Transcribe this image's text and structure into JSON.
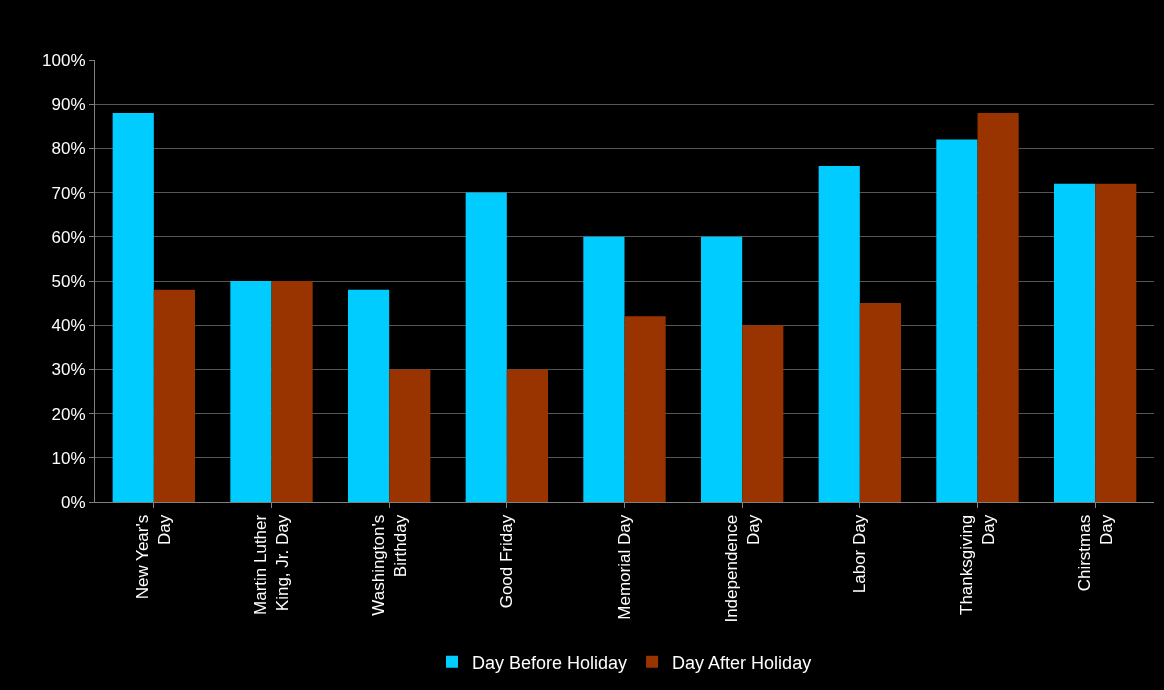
{
  "chart_data": {
    "type": "bar",
    "categories": [
      "New Year's\nDay",
      "Martin Luther\nKing, Jr. Day",
      "Washington's\nBirthday",
      "Good Friday",
      "Memorial Day",
      "Independence\nDay",
      "Labor Day",
      "Thanksgiving\nDay",
      "Chirstmas\nDay"
    ],
    "series": [
      {
        "name": "Day Before Holiday",
        "color": "#00ccff",
        "values": [
          88,
          50,
          48,
          70,
          60,
          60,
          76,
          82,
          72
        ]
      },
      {
        "name": "Day After Holiday",
        "color": "#993300",
        "values": [
          48,
          50,
          30,
          30,
          42,
          40,
          45,
          88,
          72
        ]
      }
    ],
    "ylim": [
      0,
      100
    ],
    "yticks": [
      {
        "value": 0,
        "label": "0%"
      },
      {
        "value": 10,
        "label": "10%"
      },
      {
        "value": 20,
        "label": "20%"
      },
      {
        "value": 30,
        "label": "30%"
      },
      {
        "value": 40,
        "label": "40%"
      },
      {
        "value": 50,
        "label": "50%"
      },
      {
        "value": 60,
        "label": "60%"
      },
      {
        "value": 70,
        "label": "70%"
      },
      {
        "value": 80,
        "label": "80%"
      },
      {
        "value": 90,
        "label": "90%"
      },
      {
        "value": 100,
        "label": "100%"
      }
    ],
    "grid": "y",
    "legend": "bottom"
  }
}
